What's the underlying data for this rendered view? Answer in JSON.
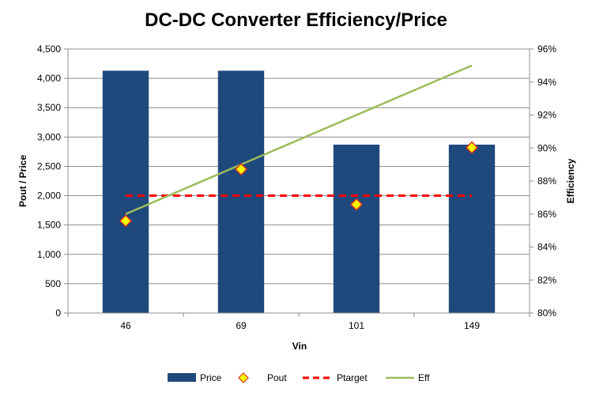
{
  "chart_data": {
    "type": "bar",
    "title": "DC-DC Converter Efficiency/Price",
    "xlabel": "Vin",
    "ylabel": "Pout / Price",
    "y2label": "Efficiency",
    "categories": [
      "46",
      "69",
      "101",
      "149"
    ],
    "ylim": [
      0,
      4500
    ],
    "y2lim": [
      0.8,
      0.96
    ],
    "y_ticks": [
      "0",
      "500",
      "1,000",
      "1,500",
      "2,000",
      "2,500",
      "3,000",
      "3,500",
      "4,000",
      "4,500"
    ],
    "y2_ticks": [
      "80%",
      "82%",
      "84%",
      "86%",
      "88%",
      "90%",
      "92%",
      "94%",
      "96%"
    ],
    "series": [
      {
        "name": "Price",
        "kind": "bar",
        "axis": "left",
        "color": "#1F497D",
        "values": [
          4130,
          4130,
          2870,
          2870
        ]
      },
      {
        "name": "Pout",
        "kind": "marker",
        "axis": "left",
        "color": "#FFFF00",
        "edge": "#E03020",
        "values": [
          1570,
          2450,
          1850,
          2820
        ]
      },
      {
        "name": "Ptarget",
        "kind": "dashed-line",
        "axis": "left",
        "color": "#FF0000",
        "values": [
          2000,
          2000,
          2000,
          2000
        ]
      },
      {
        "name": "Eff",
        "kind": "line",
        "axis": "right",
        "color": "#9BBB59",
        "values": [
          0.86,
          0.89,
          0.92,
          0.95
        ]
      }
    ],
    "grid": true,
    "legend_position": "bottom"
  }
}
